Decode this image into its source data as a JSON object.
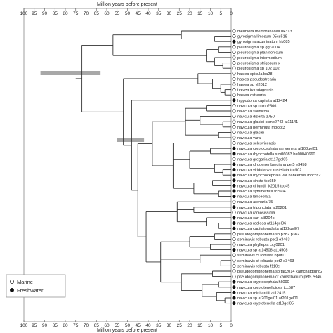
{
  "axis": {
    "title_top": "Million years before present",
    "title_bottom": "Million years before present",
    "ticks": [
      "100",
      "95",
      "90",
      "85",
      "80",
      "75",
      "70",
      "65",
      "60",
      "55",
      "50",
      "45",
      "40",
      "35",
      "30",
      "25",
      "20",
      "15",
      "10",
      "5",
      "0"
    ]
  },
  "legend": {
    "marine_label": "Marine",
    "freshwater_label": "Freshwater"
  },
  "colors": {
    "tree": "#333333",
    "marine": "#ffffff",
    "freshwater": "#111111",
    "bar": "#a8a8a8"
  },
  "taxa": [
    {
      "name": "meuniera membranacea hk313",
      "habitat": "marine"
    },
    {
      "name": "gyrosigma limosum 05cs518",
      "habitat": "marine"
    },
    {
      "name": "gyrosigma acuminatum hk085",
      "habitat": "freshwater"
    },
    {
      "name": "pleurosigma sp ggr2004",
      "habitat": "marine"
    },
    {
      "name": "pleurosigma planktonicum",
      "habitat": "marine"
    },
    {
      "name": "pleurosigma intermedium",
      "habitat": "marine"
    },
    {
      "name": "pleurosigma strigosum x",
      "habitat": "marine"
    },
    {
      "name": "pleurosigma sp 102 102",
      "habitat": "marine"
    },
    {
      "name": "haslea spicula ba28",
      "habitat": "marine"
    },
    {
      "name": "haslea pseudostrearia",
      "habitat": "marine"
    },
    {
      "name": "haslea sp vl2012",
      "habitat": "marine"
    },
    {
      "name": "haslea karadagensis",
      "habitat": "marine"
    },
    {
      "name": "haslea ostrearia",
      "habitat": "marine"
    },
    {
      "name": "hippodonta capitata at12424",
      "habitat": "freshwater"
    },
    {
      "name": "navicula sp ccmp2566",
      "habitat": "marine"
    },
    {
      "name": "navicula salinicola",
      "habitat": "marine"
    },
    {
      "name": "navicula diserta 2750",
      "habitat": "marine"
    },
    {
      "name": "navicula glaciei ccmp2743 at11141",
      "habitat": "marine"
    },
    {
      "name": "navicula perminuta mbccc3",
      "habitat": "marine"
    },
    {
      "name": "navicula glaciei",
      "habitat": "marine"
    },
    {
      "name": "navicula vara",
      "habitat": "marine"
    },
    {
      "name": "navicula sclesvicensis",
      "habitat": "marine"
    },
    {
      "name": "navicula cryptocephala var veneta at108gel01",
      "habitat": "freshwater"
    },
    {
      "name": "navicula rhynchotella skv06083 b=00040660",
      "habitat": "freshwater"
    },
    {
      "name": "navicula gregaria at117gel05",
      "habitat": "marine"
    },
    {
      "name": "navicula cf duerrenbergiana pet5 e3458",
      "habitat": "freshwater"
    },
    {
      "name": "navicula viridula var rostellata tcc502",
      "habitat": "freshwater"
    },
    {
      "name": "navicula rhynchocephala var hankensis mbccc2",
      "habitat": "freshwater"
    },
    {
      "name": "navicula cincta tcc659",
      "habitat": "freshwater"
    },
    {
      "name": "navicula cf lundii tk2015 tcc45",
      "habitat": "freshwater"
    },
    {
      "name": "navicula symmetrica tcc604",
      "habitat": "freshwater"
    },
    {
      "name": "navicula lanceolata",
      "habitat": "freshwater"
    },
    {
      "name": "navicula arenaria 75",
      "habitat": "marine"
    },
    {
      "name": "navicula tripunctata at20201",
      "habitat": "freshwater"
    },
    {
      "name": "navicula ramosissima",
      "habitat": "marine"
    },
    {
      "name": "navicula cari at8204c",
      "habitat": "freshwater"
    },
    {
      "name": "navicula radiosa at114gel06",
      "habitat": "freshwater"
    },
    {
      "name": "navicula capitatoradiata at122gel07",
      "habitat": "freshwater"
    },
    {
      "name": "pseudogomphonema sp p382 p382",
      "habitat": "marine"
    },
    {
      "name": "seminavis robusta pet2 e3463",
      "habitat": "marine"
    },
    {
      "name": "navicula phyllepta ccy0201",
      "habitat": "marine"
    },
    {
      "name": "navicula sp at14508 at14508",
      "habitat": "freshwater"
    },
    {
      "name": "seminavis cf robusta bpuf11",
      "habitat": "marine"
    },
    {
      "name": "seminavis cf robusta pet2 e3463",
      "habitat": "marine"
    },
    {
      "name": "seminavis robusta f110e",
      "habitat": "marine"
    },
    {
      "name": "pseudogomphonema sp tak2014 kamchatgtund2",
      "habitat": "marine"
    },
    {
      "name": "pseudogomphonema cf kamschatium pet5 e346",
      "habitat": "marine"
    },
    {
      "name": "navicula cryptocephala hk090",
      "habitat": "freshwater"
    },
    {
      "name": "navicula cryptotenelloides tcc587",
      "habitat": "freshwater"
    },
    {
      "name": "navicula reinhardtii at12415",
      "habitat": "freshwater"
    },
    {
      "name": "navicula sp at201gel01 at201gel01",
      "habitat": "freshwater"
    },
    {
      "name": "navicula cryptotenella at10gel05",
      "habitat": "freshwater"
    }
  ],
  "calibrations": [
    {
      "from_ma": 92,
      "to_ma": 63,
      "label": ""
    },
    {
      "from_ma": 55,
      "to_ma": 42,
      "label": ""
    }
  ]
}
